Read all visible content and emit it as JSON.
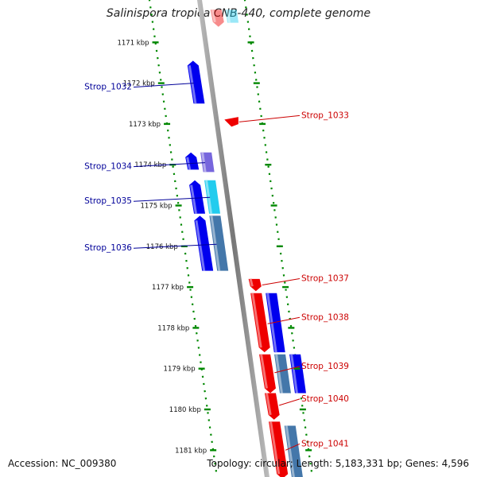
{
  "title": "Salinispora tropica CNB-440, complete genome",
  "footer": {
    "accession": "Accession: NC_009380",
    "topology": "Topology: circular; Length: 5,183,331 bp; Genes: 4,596"
  },
  "colors": {
    "forward_cds": "#0000ee",
    "reverse_cds": "#ee0000",
    "cyan_feature": "#22ccee",
    "steel_feature": "#4477aa",
    "purple_feature": "#7766dd",
    "backbone": "#888888",
    "tick": "#008800",
    "left_label": "#000099",
    "right_label": "#cc0000"
  },
  "ruler": [
    {
      "label": "1171 kbp",
      "kbp": 1171
    },
    {
      "label": "1172 kbp",
      "kbp": 1172
    },
    {
      "label": "1173 kbp",
      "kbp": 1173
    },
    {
      "label": "1174 kbp",
      "kbp": 1174
    },
    {
      "label": "1175 kbp",
      "kbp": 1175
    },
    {
      "label": "1176 kbp",
      "kbp": 1176
    },
    {
      "label": "1177 kbp",
      "kbp": 1177
    },
    {
      "label": "1178 kbp",
      "kbp": 1178
    },
    {
      "label": "1179 kbp",
      "kbp": 1179
    },
    {
      "label": "1180 kbp",
      "kbp": 1180
    },
    {
      "label": "1181 kbp",
      "kbp": 1181
    }
  ],
  "features": [
    {
      "id": "f_top_r",
      "start": 1170.2,
      "end": 1170.62,
      "lane": 1,
      "color": "reverse_cds",
      "dir": "down",
      "pale": true
    },
    {
      "id": "f_top_c",
      "start": 1170.2,
      "end": 1170.52,
      "lane": 2,
      "color": "cyan_feature",
      "dir": "none",
      "pale": true
    },
    {
      "id": "f1032",
      "start": 1171.45,
      "end": 1172.5,
      "lane": -1,
      "color": "forward_cds",
      "dir": "up"
    },
    {
      "id": "f1033",
      "start": 1172.9,
      "end": 1173.08,
      "lane": 1,
      "color": "reverse_cds",
      "dir": "left"
    },
    {
      "id": "f1034a",
      "start": 1173.7,
      "end": 1174.18,
      "lane": -1,
      "color": "purple_feature",
      "dir": "none"
    },
    {
      "id": "f1034b",
      "start": 1173.7,
      "end": 1174.12,
      "lane": -2,
      "color": "forward_cds",
      "dir": "up"
    },
    {
      "id": "f1035a",
      "start": 1174.38,
      "end": 1175.2,
      "lane": -1,
      "color": "cyan_feature",
      "dir": "none"
    },
    {
      "id": "f1035b",
      "start": 1174.38,
      "end": 1175.2,
      "lane": -2,
      "color": "forward_cds",
      "dir": "up"
    },
    {
      "id": "f1036a",
      "start": 1175.25,
      "end": 1176.6,
      "lane": -1,
      "color": "steel_feature",
      "dir": "none"
    },
    {
      "id": "f1036b",
      "start": 1175.25,
      "end": 1176.6,
      "lane": -2,
      "color": "forward_cds",
      "dir": "up"
    },
    {
      "id": "f1037",
      "start": 1176.8,
      "end": 1177.1,
      "lane": 1,
      "color": "reverse_cds",
      "dir": "down"
    },
    {
      "id": "f1038a",
      "start": 1177.15,
      "end": 1178.6,
      "lane": 1,
      "color": "reverse_cds",
      "dir": "down"
    },
    {
      "id": "f1038b",
      "start": 1177.15,
      "end": 1178.6,
      "lane": 2,
      "color": "forward_cds",
      "dir": "none"
    },
    {
      "id": "f1039a",
      "start": 1178.65,
      "end": 1179.6,
      "lane": 1,
      "color": "reverse_cds",
      "dir": "down"
    },
    {
      "id": "f1039b",
      "start": 1178.65,
      "end": 1179.6,
      "lane": 2,
      "color": "steel_feature",
      "dir": "none"
    },
    {
      "id": "f1039c",
      "start": 1178.65,
      "end": 1179.6,
      "lane": 3,
      "color": "forward_cds",
      "dir": "none"
    },
    {
      "id": "f1040",
      "start": 1179.6,
      "end": 1180.25,
      "lane": 1,
      "color": "reverse_cds",
      "dir": "down"
    },
    {
      "id": "f1041a",
      "start": 1180.3,
      "end": 1181.7,
      "lane": 1,
      "color": "reverse_cds",
      "dir": "down"
    },
    {
      "id": "f1041b",
      "start": 1180.4,
      "end": 1181.7,
      "lane": 2,
      "color": "steel_feature",
      "dir": "none"
    }
  ],
  "labels": [
    {
      "text": "Strop_1032",
      "side": "left",
      "target_kbp": 1172.0
    },
    {
      "text": "Strop_1033",
      "side": "right",
      "target_kbp": 1172.95
    },
    {
      "text": "Strop_1034",
      "side": "left",
      "target_kbp": 1173.95
    },
    {
      "text": "Strop_1035",
      "side": "left",
      "target_kbp": 1174.8
    },
    {
      "text": "Strop_1036",
      "side": "left",
      "target_kbp": 1175.95
    },
    {
      "text": "Strop_1037",
      "side": "right",
      "target_kbp": 1176.95
    },
    {
      "text": "Strop_1038",
      "side": "right",
      "target_kbp": 1177.9
    },
    {
      "text": "Strop_1039",
      "side": "right",
      "target_kbp": 1179.1
    },
    {
      "text": "Strop_1040",
      "side": "right",
      "target_kbp": 1179.9
    },
    {
      "text": "Strop_1041",
      "side": "right",
      "target_kbp": 1181.0
    }
  ]
}
